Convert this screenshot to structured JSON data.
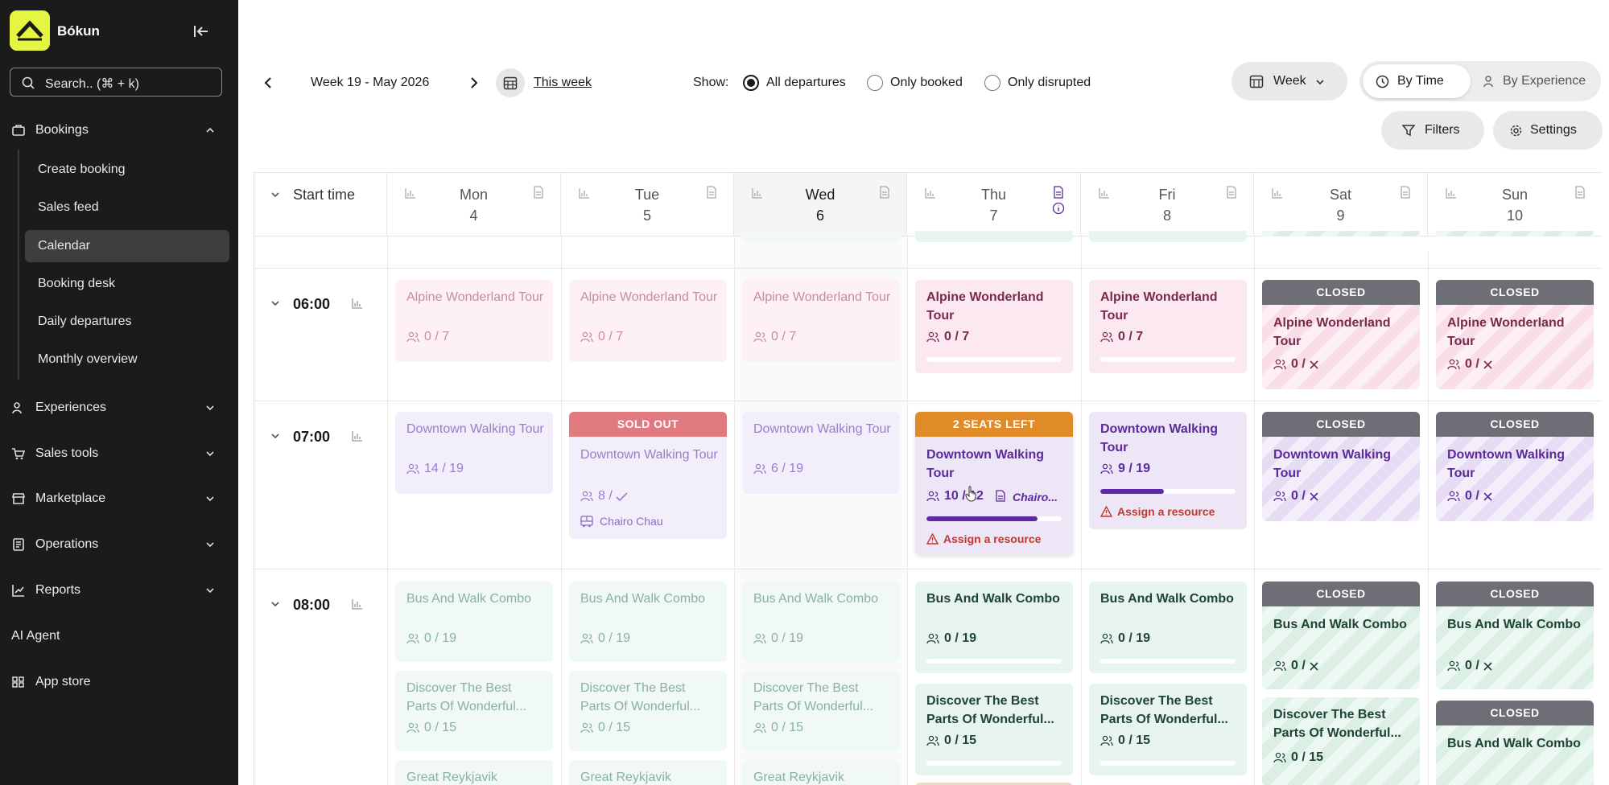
{
  "app": {
    "brand": "Bókun"
  },
  "sidebar": {
    "search_placeholder": "Search.. (⌘ + k)",
    "bookings_label": "Bookings",
    "sub_items": [
      "Create booking",
      "Sales feed",
      "Calendar",
      "Booking desk",
      "Daily departures",
      "Monthly overview"
    ],
    "active_sub": "Calendar",
    "sections": [
      "Experiences",
      "Sales tools",
      "Marketplace",
      "Operations",
      "Reports"
    ],
    "ai_agent": "AI Agent",
    "app_store": "App store"
  },
  "toolbar": {
    "week_label": "Week 19 - May 2026",
    "this_week": "This week",
    "show_label": "Show:",
    "radio_options": [
      "All departures",
      "Only booked",
      "Only disrupted"
    ],
    "selected_radio": "All departures",
    "view_select": "Week",
    "by_time": "By Time",
    "by_experience": "By Experience",
    "filters": "Filters",
    "settings": "Settings"
  },
  "grid": {
    "start_time_label": "Start time",
    "days": [
      {
        "name": "Mon",
        "date": "4"
      },
      {
        "name": "Tue",
        "date": "5"
      },
      {
        "name": "Wed",
        "date": "6"
      },
      {
        "name": "Thu",
        "date": "7"
      },
      {
        "name": "Fri",
        "date": "8"
      },
      {
        "name": "Sat",
        "date": "9"
      },
      {
        "name": "Sun",
        "date": "10"
      }
    ],
    "times": [
      "06:00",
      "07:00",
      "08:00"
    ]
  },
  "cards": {
    "closed": "CLOSED",
    "sold_out": "SOLD OUT",
    "seats_left": "2 SEATS LEFT",
    "assign": "Assign a resource",
    "alpine": "Alpine Wonderland Tour",
    "downtown": "Downtown Walking Tour",
    "bus": "Bus And Walk Combo",
    "discover": "Discover The Best Parts Of Wonderful...",
    "great": "Great Reykjavik",
    "guide_tue": "Chairo Chau",
    "guide_thu": "Chairo...",
    "c_0_7": "0 / 7",
    "c_0_x": "0 /",
    "c_14_19": "14 / 19",
    "c_8": "8 /",
    "c_6_19": "6 / 19",
    "c_10_12": "10 / 12",
    "c_9_19": "9 / 19",
    "c_0_19": "0 / 19",
    "c_0_15": "0 / 15",
    "thu_fill": 0.82,
    "fri_fill": 0.47
  }
}
